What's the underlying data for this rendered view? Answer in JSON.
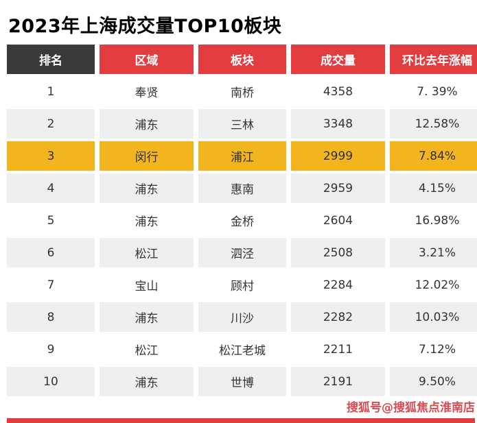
{
  "title": "2023年上海成交量TOP10板块",
  "watermark": "搜狐号@搜狐焦点淮南店",
  "colors": {
    "red": "#e23b40",
    "dark": "#3a3a3a",
    "highlight": "#f2b51d",
    "rowalt": "#efefef",
    "watermark": "#d6373c"
  },
  "chart_data": {
    "type": "table",
    "title": "2023年上海成交量TOP10板块",
    "headers": [
      "排名",
      "区域",
      "板块",
      "成交量",
      "环比去年涨幅"
    ],
    "rows": [
      {
        "rank": "1",
        "region": "奉贤",
        "plate": "南桥",
        "volume": "4358",
        "change": "7. 39%",
        "highlight": false
      },
      {
        "rank": "2",
        "region": "浦东",
        "plate": "三林",
        "volume": "3348",
        "change": "12.58%",
        "highlight": false
      },
      {
        "rank": "3",
        "region": "闵行",
        "plate": "浦江",
        "volume": "2999",
        "change": "7.84%",
        "highlight": true
      },
      {
        "rank": "4",
        "region": "浦东",
        "plate": "惠南",
        "volume": "2959",
        "change": "4.15%",
        "highlight": false
      },
      {
        "rank": "5",
        "region": "浦东",
        "plate": "金桥",
        "volume": "2604",
        "change": "16.98%",
        "highlight": false
      },
      {
        "rank": "6",
        "region": "松江",
        "plate": "泗泾",
        "volume": "2508",
        "change": "3.21%",
        "highlight": false
      },
      {
        "rank": "7",
        "region": "宝山",
        "plate": "顾村",
        "volume": "2284",
        "change": "12.02%",
        "highlight": false
      },
      {
        "rank": "8",
        "region": "浦东",
        "plate": "川沙",
        "volume": "2282",
        "change": "10.03%",
        "highlight": false
      },
      {
        "rank": "9",
        "region": "松江",
        "plate": "松江老城",
        "volume": "2211",
        "change": "7.12%",
        "highlight": false
      },
      {
        "rank": "10",
        "region": "浦东",
        "plate": "世博",
        "volume": "2191",
        "change": "9.50%",
        "highlight": false
      }
    ]
  }
}
